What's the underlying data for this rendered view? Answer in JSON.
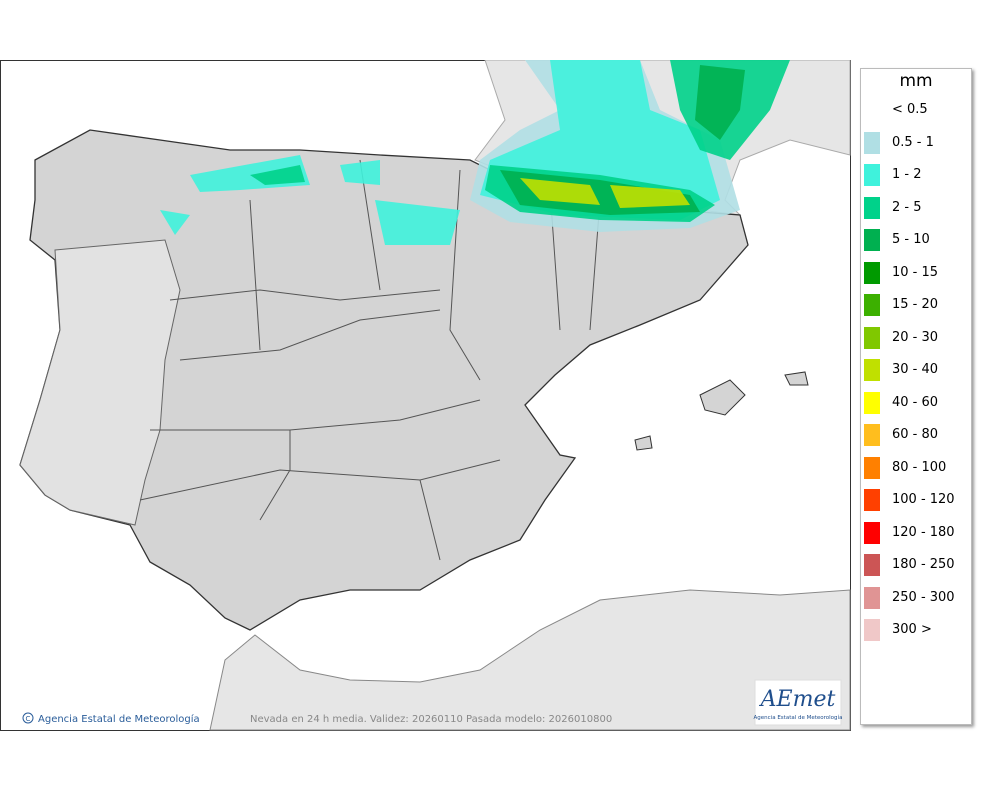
{
  "legend": {
    "title": "mm",
    "items": [
      {
        "label": "< 0.5",
        "color": "#ffffff"
      },
      {
        "label": "0.5 - 1",
        "color": "#b0dfe4"
      },
      {
        "label": "1 - 2",
        "color": "#3ff2dc"
      },
      {
        "label": "2 - 5",
        "color": "#00d28a"
      },
      {
        "label": "5 - 10",
        "color": "#00b050"
      },
      {
        "label": "10 - 15",
        "color": "#009a00"
      },
      {
        "label": "15 - 20",
        "color": "#3cb000"
      },
      {
        "label": "20 - 30",
        "color": "#80c800"
      },
      {
        "label": "30 - 40",
        "color": "#c0e000"
      },
      {
        "label": "40 - 60",
        "color": "#ffff00"
      },
      {
        "label": "60 - 80",
        "color": "#ffbe1e"
      },
      {
        "label": "80 - 100",
        "color": "#ff8000"
      },
      {
        "label": "100 - 120",
        "color": "#ff4000"
      },
      {
        "label": "120 - 180",
        "color": "#ff0000"
      },
      {
        "label": "180 - 250",
        "color": "#cc5555"
      },
      {
        "label": "250 - 300",
        "color": "#e09494"
      },
      {
        "label": "300 >",
        "color": "#f0c8c8"
      }
    ]
  },
  "footer": {
    "agency": "Agencia Estatal de Meteorología",
    "caption": "Nevada en 24 h media. Validez: 20260110 Pasada modelo: 2026010800"
  },
  "logo": {
    "name": "AEmet",
    "subtitle": "Agencia Estatal de Meteorología"
  }
}
